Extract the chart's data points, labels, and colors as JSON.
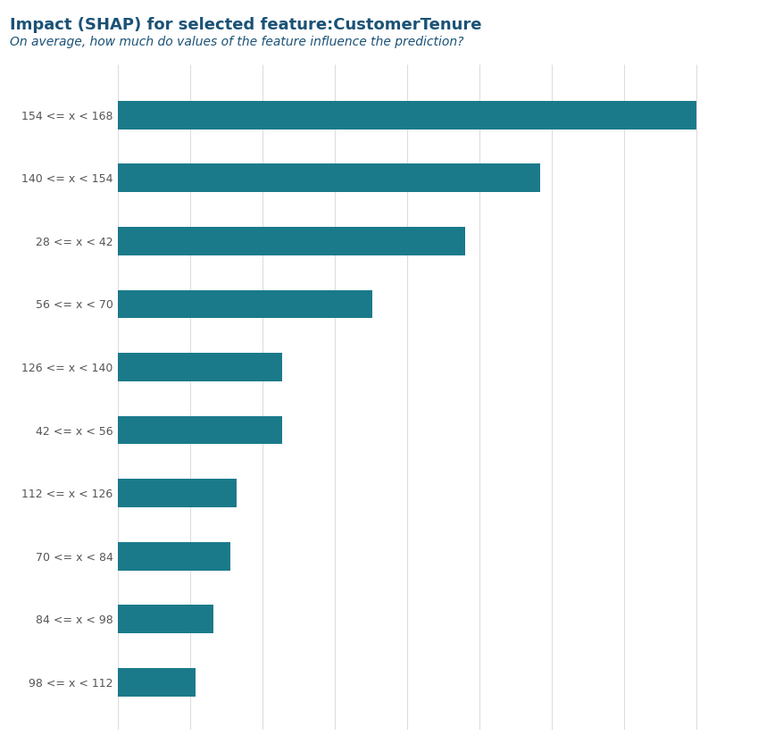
{
  "title": "Impact (SHAP) for selected feature:CustomerTenure",
  "subtitle": "On average, how much do values of the feature influence the prediction?",
  "title_color": "#1a5276",
  "subtitle_color": "#1a5276",
  "bar_color": "#1a7a8a",
  "background_color": "#ffffff",
  "categories": [
    "154 <= x < 168",
    "140 <= x < 154",
    "28 <= x < 42",
    "56 <= x < 70",
    "126 <= x < 140",
    "42 <= x < 56",
    "112 <= x < 126",
    "70 <= x < 84",
    "84 <= x < 98",
    "98 <= x < 112"
  ],
  "values": [
    1.0,
    0.73,
    0.6,
    0.44,
    0.285,
    0.285,
    0.205,
    0.195,
    0.165,
    0.135
  ],
  "xlim": [
    0,
    1.08
  ],
  "grid_color": "#dddddd",
  "title_fontsize": 13,
  "subtitle_fontsize": 10,
  "tick_fontsize": 9,
  "figsize": [
    8.49,
    8.42
  ]
}
